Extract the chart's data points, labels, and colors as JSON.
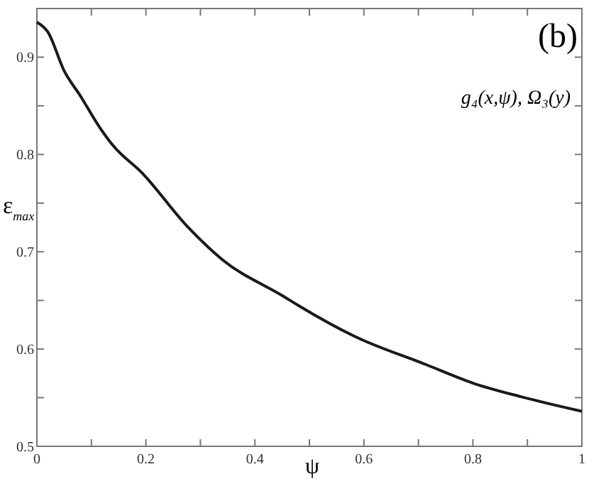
{
  "chart_data": {
    "type": "line",
    "xlabel": "ψ",
    "ylabel": "ε$_{max}$",
    "annotations": [
      "(b)",
      "g₄(x,ψ), Ω₃(y)"
    ],
    "x": [
      0,
      0.02,
      0.05,
      0.08,
      0.115,
      0.14,
      0.193,
      0.276,
      0.34,
      0.453,
      0.479,
      0.583,
      0.714,
      0.8,
      0.888,
      1
    ],
    "series": [
      {
        "color": "#1a1a1a",
        "values": [
          0.936,
          0.926,
          0.886,
          0.86,
          0.828,
          0.809,
          0.781,
          0.726,
          0.692,
          0.654,
          0.645,
          0.613,
          0.584,
          0.565,
          0.551,
          0.536
        ]
      }
    ],
    "xlim": [
      0,
      1
    ],
    "ylim": [
      0.5,
      0.95
    ],
    "xticks": [
      0,
      {
        "value": 0.1,
        "label": null
      },
      0.2,
      {
        "value": 0.3,
        "label": null
      },
      0.4,
      {
        "value": 0.5,
        "label": null
      },
      0.6,
      {
        "value": 0.7,
        "label": null
      },
      0.8,
      {
        "value": 0.9,
        "label": null
      },
      1
    ],
    "yticks": [
      0.5,
      {
        "value": 0.55,
        "label": null
      },
      0.6,
      {
        "value": 0.65,
        "label": null
      },
      0.7,
      {
        "value": 0.75,
        "label": null
      },
      0.8,
      {
        "value": 0.85,
        "label": null
      },
      0.9
    ],
    "grid": false,
    "marker": "none",
    "line_style": "solid"
  }
}
